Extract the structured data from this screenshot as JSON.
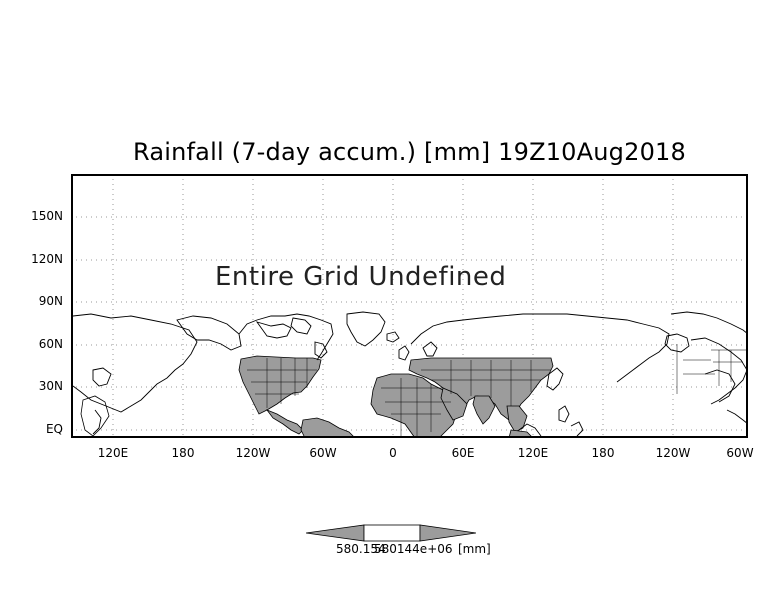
{
  "map": {
    "title": "Rainfall (7-day accum.) [mm] 19Z10Aug2018",
    "message": "Entire Grid Undefined",
    "lat_labels": [
      "150N",
      "120N",
      "90N",
      "60N",
      "30N",
      "EQ"
    ],
    "lon_labels": [
      "120E",
      "180",
      "120W",
      "60W",
      "0",
      "60E",
      "120E",
      "180",
      "120W",
      "60W"
    ],
    "colors": {
      "land_fill": "#9c9c9c",
      "coastline": "#000000",
      "grid": "#9a9a9a",
      "frame": "#000000"
    }
  },
  "legend": {
    "min_label": "580.154",
    "max_label": "580144e+06",
    "unit_label": "[mm]"
  }
}
